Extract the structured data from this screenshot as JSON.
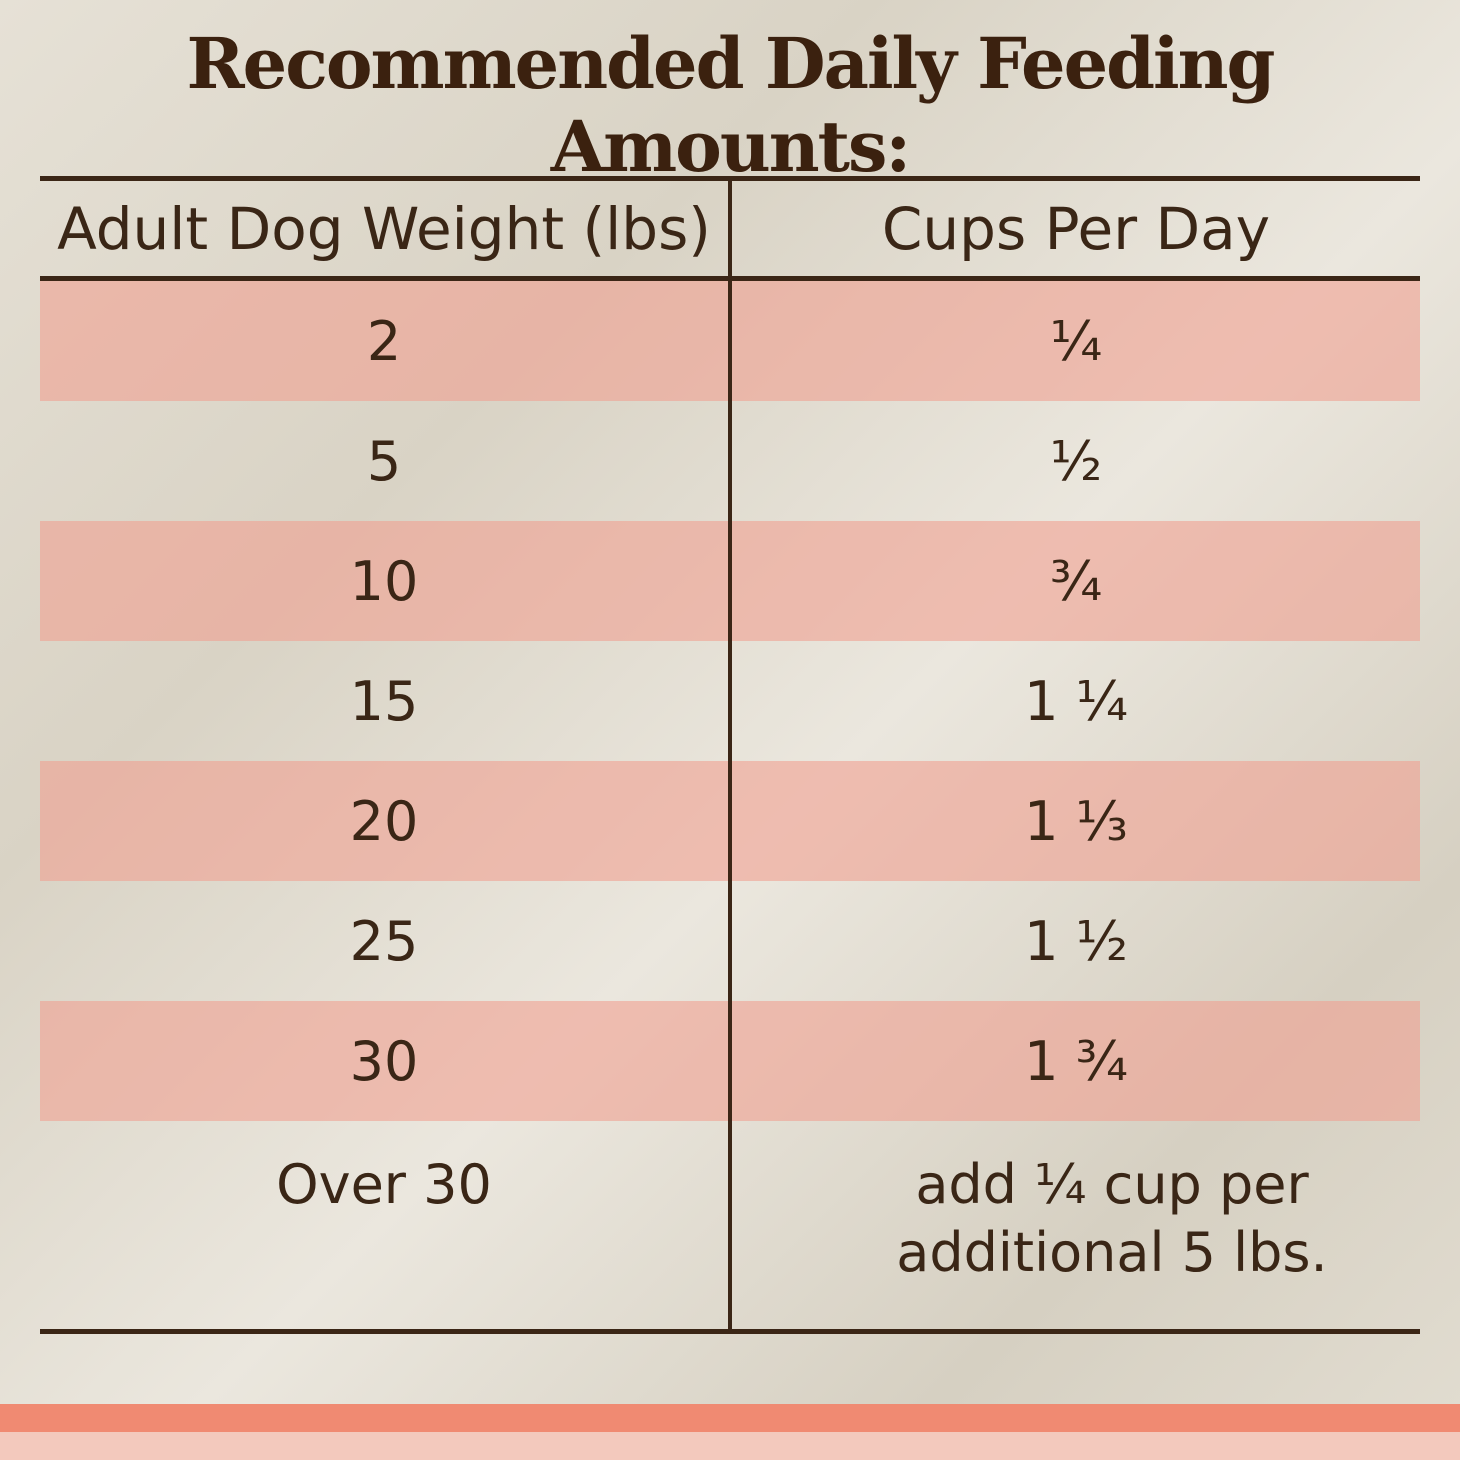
{
  "title": "Recommended Daily Feeding Amounts:",
  "table": {
    "headers": [
      "Adult Dog Weight (lbs)",
      "Cups Per Day"
    ],
    "rows": [
      [
        "2",
        "¼"
      ],
      [
        "5",
        "½"
      ],
      [
        "10",
        "¾"
      ],
      [
        "15",
        "1 ¼"
      ],
      [
        "20",
        "1 ⅓"
      ],
      [
        "25",
        "1 ½"
      ],
      [
        "30",
        "1 ¾"
      ],
      [
        "Over 30",
        "add ¼ cup per additional 5 lbs."
      ]
    ]
  }
}
